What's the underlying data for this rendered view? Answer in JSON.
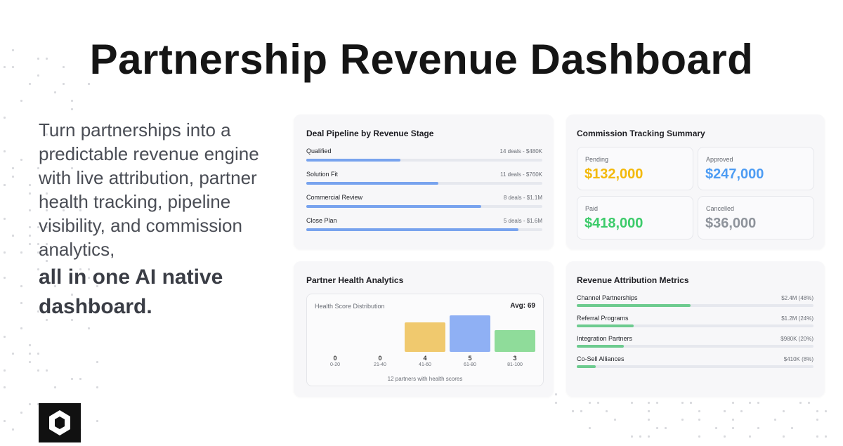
{
  "title": "Partnership Revenue Dashboard",
  "intro": {
    "text": "Turn partnerships into a predictable revenue engine with live attribution, partner health tracking, pipeline visibility, and commission analytics,",
    "emphasis": "all in one AI native dashboard."
  },
  "pipeline": {
    "title": "Deal Pipeline by Revenue Stage",
    "stages": [
      {
        "name": "Qualified",
        "summary": "14 deals - $480K",
        "progress": 40
      },
      {
        "name": "Solution Fit",
        "summary": "11 deals - $760K",
        "progress": 56
      },
      {
        "name": "Commercial Review",
        "summary": "8 deals - $1.1M",
        "progress": 74
      },
      {
        "name": "Close Plan",
        "summary": "5 deals - $1.6M",
        "progress": 90
      }
    ]
  },
  "commission": {
    "title": "Commission Tracking Summary",
    "items": [
      {
        "label": "Pending",
        "amount": "$132,000",
        "color": "#f3b90b"
      },
      {
        "label": "Approved",
        "amount": "$247,000",
        "color": "#4d9cf3"
      },
      {
        "label": "Paid",
        "amount": "$418,000",
        "color": "#3ccb6a"
      },
      {
        "label": "Cancelled",
        "amount": "$36,000",
        "color": "#8e939b"
      }
    ]
  },
  "health": {
    "title": "Partner Health Analytics",
    "chart_title": "Health Score Distribution",
    "average": "Avg: 69",
    "buckets": [
      {
        "range": "0-20",
        "count": 0,
        "color": "#f0c96e"
      },
      {
        "range": "21-40",
        "count": 0,
        "color": "#f0c96e"
      },
      {
        "range": "41-60",
        "count": 4,
        "color": "#f0c96e"
      },
      {
        "range": "61-80",
        "count": 5,
        "color": "#8fb0f4"
      },
      {
        "range": "81-100",
        "count": 3,
        "color": "#8fdc9a"
      }
    ],
    "footnote": "12 partners with health scores"
  },
  "attribution": {
    "title": "Revenue Attribution Metrics",
    "channels": [
      {
        "name": "Channel Partnerships",
        "summary": "$2.4M (48%)",
        "share": 48
      },
      {
        "name": "Referral Programs",
        "summary": "$1.2M (24%)",
        "share": 24
      },
      {
        "name": "Integration Partners",
        "summary": "$980K (20%)",
        "share": 20
      },
      {
        "name": "Co-Sell Alliances",
        "summary": "$410K (8%)",
        "share": 8
      }
    ]
  }
}
